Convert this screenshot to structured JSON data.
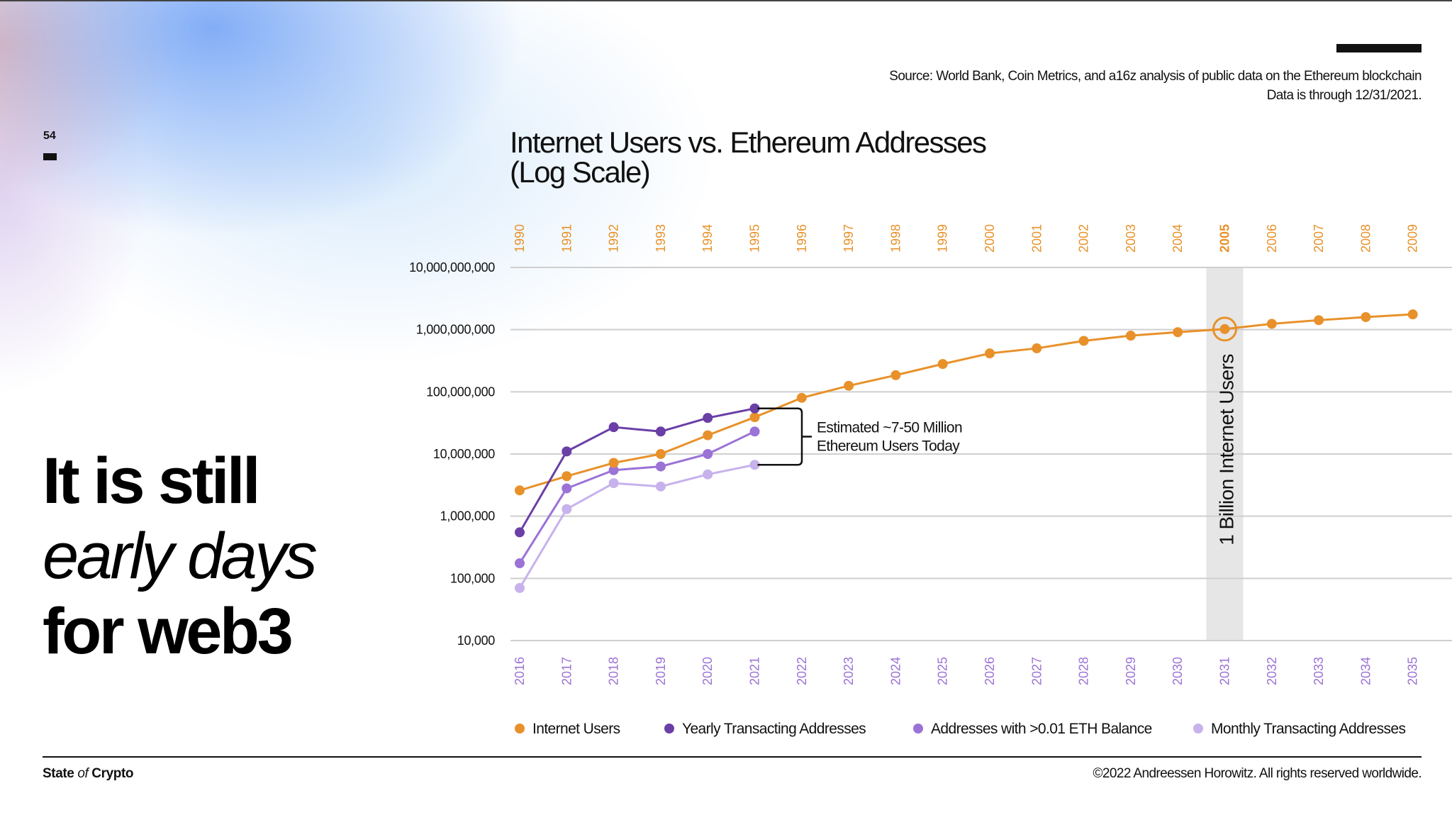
{
  "slide": {
    "page_number": "54",
    "headline": {
      "line1": "It is still",
      "line2": "early days",
      "line3": "for web3"
    },
    "source_line1": "Source: World Bank, Coin Metrics, and a16z analysis of public data on the Ethereum blockchain",
    "source_line2": "Data is through 12/31/2021.",
    "footer_left": {
      "part1": "State ",
      "part2": "of",
      "part3": " Crypto"
    },
    "footer_right": "©2022 Andreessen Horowitz. All rights reserved worldwide."
  },
  "chart_data": {
    "type": "line",
    "title_line1": "Internet Users vs. Ethereum Addresses",
    "title_line2": "(Log Scale)",
    "y_scale": "log",
    "ylim": [
      10000,
      10000000000
    ],
    "y_ticks": [
      {
        "value": 10000000000,
        "label": "10,000,000,000"
      },
      {
        "value": 1000000000,
        "label": "1,000,000,000"
      },
      {
        "value": 100000000,
        "label": "100,000,000"
      },
      {
        "value": 10000000,
        "label": "10,000,000"
      },
      {
        "value": 1000000,
        "label": "1,000,000"
      },
      {
        "value": 100000,
        "label": "100,000"
      },
      {
        "value": 10000,
        "label": "10,000"
      }
    ],
    "x_top_labels": [
      "1990",
      "1991",
      "1992",
      "1993",
      "1994",
      "1995",
      "1996",
      "1997",
      "1998",
      "1999",
      "2000",
      "2001",
      "2002",
      "2003",
      "2004",
      "2005",
      "2006",
      "2007",
      "2008",
      "2009"
    ],
    "x_top_highlight": "2005",
    "x_bottom_labels": [
      "2016",
      "2017",
      "2018",
      "2019",
      "2020",
      "2021",
      "2022",
      "2023",
      "2024",
      "2025",
      "2026",
      "2027",
      "2028",
      "2029",
      "2030",
      "2031",
      "2032",
      "2033",
      "2034",
      "2035"
    ],
    "colors": {
      "internet": "#e8912a",
      "yearly": "#6a3fa6",
      "balance": "#9b72d6",
      "monthly": "#c7b2ec",
      "grid": "#cfcfcf",
      "highlight_band": "#e6e6e6",
      "bottom_label": "#9b72d6"
    },
    "series": [
      {
        "name": "Internet Users",
        "color": "#e8912a",
        "values": [
          2600000,
          4400000,
          7200000,
          10000000,
          20000000,
          39000000,
          80000000,
          125000000,
          185000000,
          280000000,
          415000000,
          500000000,
          660000000,
          800000000,
          910000000,
          1020000000,
          1240000000,
          1420000000,
          1590000000,
          1760000000
        ]
      },
      {
        "name": "Yearly Transacting Addresses",
        "color": "#6a3fa6",
        "values": [
          550000,
          11000000,
          27000000,
          23000000,
          38000000,
          54000000
        ]
      },
      {
        "name": "Addresses with >0.01 ETH Balance",
        "color": "#9b72d6",
        "values": [
          175000,
          2800000,
          5500000,
          6300000,
          10000000,
          23000000
        ]
      },
      {
        "name": "Monthly Transacting Addresses",
        "color": "#c7b2ec",
        "values": [
          70000,
          1300000,
          3400000,
          3000000,
          4700000,
          6700000
        ]
      }
    ],
    "bracket_annotation": [
      "Estimated ~7-50 Million",
      "Ethereum Users Today"
    ],
    "band_label": "1 Billion Internet Users",
    "band_index": 15,
    "legend_position": "bottom"
  }
}
